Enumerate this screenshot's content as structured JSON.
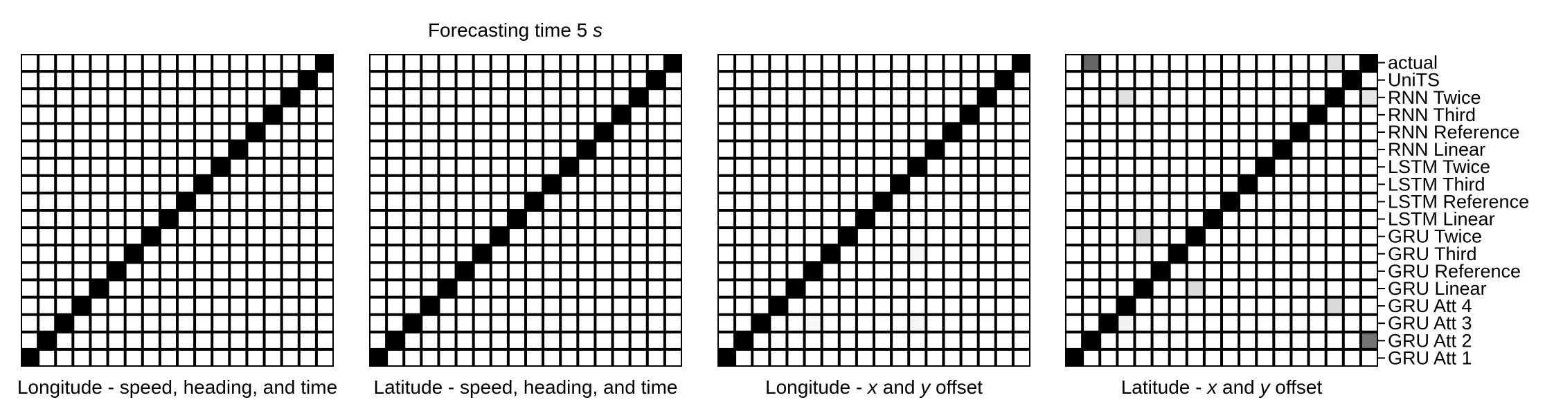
{
  "chart_data": {
    "type": "heatmap",
    "title": "Forecasting time 5 s",
    "title_text": "Forecasting time 5 ",
    "title_unit": "s",
    "colormap": {
      "zero": "#ffffff",
      "one": "#000000"
    },
    "grid_color": "#000000",
    "row_labels": [
      "actual",
      "UniTS",
      "RNN Twice",
      "RNN Third",
      "RNN Reference",
      "RNN Linear",
      "LSTM Twice",
      "LSTM Third",
      "LSTM Reference",
      "LSTM Linear",
      "GRU Twice",
      "GRU Third",
      "GRU Reference",
      "GRU Linear",
      "GRU Att 4",
      "GRU Att 3",
      "GRU Att 2",
      "GRU Att 1"
    ],
    "label_side": "right",
    "panels": [
      {
        "name": "panel-longitude-speed",
        "xlabel_parts": [
          {
            "t": "Longitude - speed, heading, and time",
            "i": false
          }
        ],
        "off_diagonal": []
      },
      {
        "name": "panel-latitude-speed",
        "xlabel_parts": [
          {
            "t": "Latitude - speed, heading, and time",
            "i": false
          }
        ],
        "off_diagonal": []
      },
      {
        "name": "panel-longitude-xy",
        "xlabel_parts": [
          {
            "t": "Longitude - ",
            "i": false
          },
          {
            "t": "x",
            "i": true
          },
          {
            "t": " and ",
            "i": false
          },
          {
            "t": "y",
            "i": true
          },
          {
            "t": " offset",
            "i": false
          }
        ],
        "off_diagonal": [
          {
            "row": 11,
            "col": 11,
            "value": 0.04
          },
          {
            "row": 15,
            "col": 11,
            "value": 0.04
          },
          {
            "row": 15,
            "col": 5,
            "value": 0.03
          }
        ]
      },
      {
        "name": "panel-latitude-xy",
        "xlabel_parts": [
          {
            "t": "Latitude - ",
            "i": false
          },
          {
            "t": "x",
            "i": true
          },
          {
            "t": " and ",
            "i": false
          },
          {
            "t": "y",
            "i": true
          },
          {
            "t": " offset",
            "i": false
          }
        ],
        "off_diagonal": [
          {
            "row": 0,
            "col": 1,
            "value": 0.6
          },
          {
            "row": 0,
            "col": 15,
            "value": 0.12
          },
          {
            "row": 2,
            "col": 3,
            "value": 0.12
          },
          {
            "row": 2,
            "col": 17,
            "value": 0.1
          },
          {
            "row": 10,
            "col": 4,
            "value": 0.15
          },
          {
            "row": 13,
            "col": 7,
            "value": 0.15
          },
          {
            "row": 14,
            "col": 15,
            "value": 0.15
          },
          {
            "row": 16,
            "col": 17,
            "value": 0.55
          },
          {
            "row": 15,
            "col": 3,
            "value": 0.05
          }
        ]
      }
    ]
  }
}
